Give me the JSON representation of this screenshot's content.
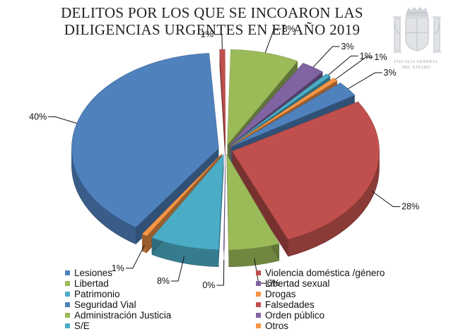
{
  "title_lines": [
    "DELITOS POR LOS QUE SE INCOARON LAS",
    "DILIGENCIAS URGENTES EN EL AÑO 2019"
  ],
  "emblem": {
    "icon": "spanish-coat-of-arms-icon",
    "text_lines": [
      "FISCALIA GENERAL",
      "DEL ESTADO"
    ],
    "color": "#c9ccd0"
  },
  "chart_data": {
    "type": "pie",
    "title": "DELITOS POR LOS QUE SE INCOARON LAS DILIGENCIAS URGENTES EN EL AÑO 2019",
    "style": "3d-exploded",
    "slices": [
      {
        "name": "Falsedades",
        "value": 1,
        "label": "1%",
        "color": "#c0504d"
      },
      {
        "name": "Administración Justicia",
        "value": 8,
        "label": "8%",
        "color": "#9bbb59"
      },
      {
        "name": "Orden público",
        "value": 3,
        "label": "3%",
        "color": "#8064a2"
      },
      {
        "name": "S/E",
        "value": 1,
        "label": "1%",
        "color": "#4bacc6"
      },
      {
        "name": "Otros",
        "value": 1,
        "label": "1%",
        "color": "#f79646"
      },
      {
        "name": "Lesiones",
        "value": 3,
        "label": "3%",
        "color": "#4f81bd"
      },
      {
        "name": "Violencia doméstica /género",
        "value": 28,
        "label": "28%",
        "color": "#c0504d"
      },
      {
        "name": "Libertad",
        "value": 6,
        "label": "6%",
        "color": "#9bbb59"
      },
      {
        "name": "Libertad sexual",
        "value": 0,
        "label": "0%",
        "color": "#8064a2"
      },
      {
        "name": "Patrimonio",
        "value": 8,
        "label": "8%",
        "color": "#4bacc6"
      },
      {
        "name": "Drogas",
        "value": 1,
        "label": "1%",
        "color": "#f79646"
      },
      {
        "name": "Seguridad Vial",
        "value": 40,
        "label": "40%",
        "color": "#4f81bd"
      }
    ],
    "legend": [
      {
        "label": "Lesiones",
        "color": "#4f81bd"
      },
      {
        "label": "Violencia doméstica /género",
        "color": "#c0504d"
      },
      {
        "label": "Libertad",
        "color": "#9bbb59"
      },
      {
        "label": "Libertad sexual",
        "color": "#8064a2"
      },
      {
        "label": "Patrimonio",
        "color": "#4bacc6"
      },
      {
        "label": "Drogas",
        "color": "#f79646"
      },
      {
        "label": "Seguridad Vial",
        "color": "#4f81bd"
      },
      {
        "label": "Falsedades",
        "color": "#c0504d"
      },
      {
        "label": "Administración Justicia",
        "color": "#9bbb59"
      },
      {
        "label": "Orden público",
        "color": "#8064a2"
      },
      {
        "label": "S/E",
        "color": "#4bacc6"
      },
      {
        "label": "Otros",
        "color": "#f79646"
      }
    ],
    "legend_placement": "bottom"
  }
}
